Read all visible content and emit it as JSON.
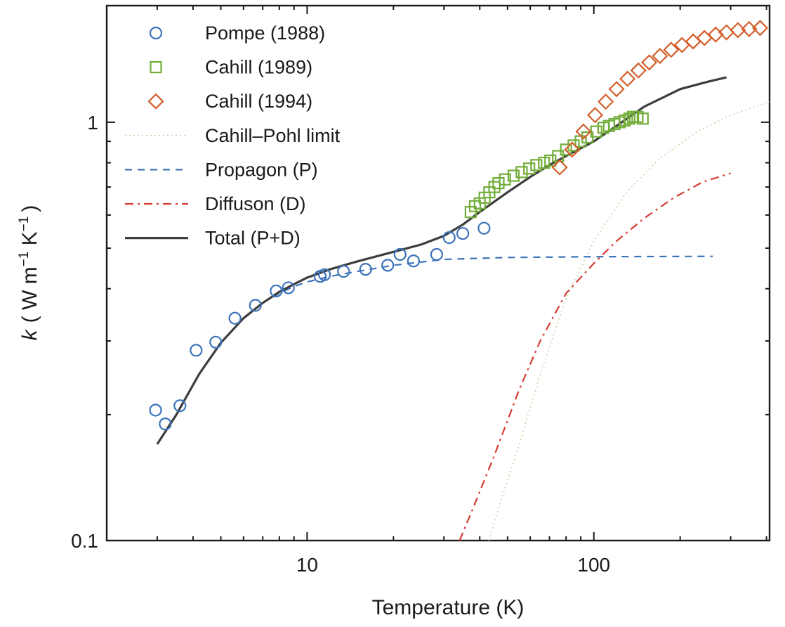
{
  "chart_data": {
    "type": "scatter",
    "xlabel": "Temperature (K)",
    "ylabel": {
      "symbol": "k",
      "units": "( W m",
      "exp1": "−1",
      "mid": " K",
      "exp2": "−1",
      "close": ")"
    },
    "x_scale": "log",
    "y_scale": "log",
    "xlim": [
      2,
      410
    ],
    "ylim": [
      0.1,
      1.9
    ],
    "x_tick_labels": [
      {
        "value": 10,
        "label": "10"
      },
      {
        "value": 100,
        "label": "100"
      }
    ],
    "y_tick_labels": [
      {
        "value": 0.1,
        "label": "0.1"
      },
      {
        "value": 1,
        "label": "1"
      }
    ],
    "grid": false,
    "legend_position": "top-left",
    "series": [
      {
        "name": "Pompe (1988)",
        "kind": "marker",
        "marker": "circle",
        "color": "#3b73b9",
        "points": [
          [
            2.96,
            0.205
          ],
          [
            3.2,
            0.19
          ],
          [
            3.6,
            0.21
          ],
          [
            4.1,
            0.285
          ],
          [
            4.8,
            0.298
          ],
          [
            5.6,
            0.34
          ],
          [
            6.6,
            0.365
          ],
          [
            7.8,
            0.395
          ],
          [
            8.6,
            0.402
          ],
          [
            11.1,
            0.428
          ],
          [
            11.5,
            0.432
          ],
          [
            13.4,
            0.44
          ],
          [
            16.0,
            0.445
          ],
          [
            19.1,
            0.455
          ],
          [
            21.1,
            0.483
          ],
          [
            23.5,
            0.466
          ],
          [
            28.3,
            0.483
          ],
          [
            31.3,
            0.53
          ],
          [
            34.9,
            0.542
          ],
          [
            41.4,
            0.558
          ]
        ]
      },
      {
        "name": "Cahill (1989)",
        "kind": "marker",
        "marker": "square",
        "color": "#73ad3a",
        "points": [
          [
            37.2,
            0.61
          ],
          [
            38.5,
            0.63
          ],
          [
            40.0,
            0.64
          ],
          [
            41.6,
            0.66
          ],
          [
            43.2,
            0.68
          ],
          [
            45.0,
            0.7
          ],
          [
            46.5,
            0.715
          ],
          [
            49.0,
            0.73
          ],
          [
            52.5,
            0.745
          ],
          [
            56.0,
            0.76
          ],
          [
            59.5,
            0.775
          ],
          [
            63.0,
            0.79
          ],
          [
            67.0,
            0.8
          ],
          [
            70.5,
            0.81
          ],
          [
            75.0,
            0.83
          ],
          [
            80.0,
            0.86
          ],
          [
            85.0,
            0.88
          ],
          [
            90.0,
            0.9
          ],
          [
            95.0,
            0.92
          ],
          [
            102.0,
            0.95
          ],
          [
            108.0,
            0.97
          ],
          [
            113.0,
            0.98
          ],
          [
            118.0,
            0.99
          ],
          [
            123.0,
            1.0
          ],
          [
            128.0,
            1.01
          ],
          [
            133.0,
            1.02
          ],
          [
            137.0,
            1.03
          ],
          [
            142.0,
            1.03
          ],
          [
            148.0,
            1.02
          ]
        ]
      },
      {
        "name": "Cahill (1994)",
        "kind": "marker",
        "marker": "diamond",
        "color": "#d35e2a",
        "points": [
          [
            76.0,
            0.78
          ],
          [
            84.0,
            0.86
          ],
          [
            92.0,
            0.95
          ],
          [
            101.0,
            1.04
          ],
          [
            110.0,
            1.12
          ],
          [
            120.0,
            1.2
          ],
          [
            131.0,
            1.27
          ],
          [
            143.0,
            1.33
          ],
          [
            156.0,
            1.39
          ],
          [
            170.0,
            1.44
          ],
          [
            186.0,
            1.49
          ],
          [
            203.0,
            1.53
          ],
          [
            222.0,
            1.56
          ],
          [
            243.0,
            1.59
          ],
          [
            266.0,
            1.62
          ],
          [
            290.0,
            1.64
          ],
          [
            318.0,
            1.66
          ],
          [
            348.0,
            1.67
          ],
          [
            380.0,
            1.68
          ]
        ]
      },
      {
        "name": "Cahill–Pohl limit",
        "kind": "line",
        "dash": "dotted",
        "color": "#c7d4a3",
        "points": [
          [
            43.0,
            0.1
          ],
          [
            48.0,
            0.128
          ],
          [
            55.0,
            0.17
          ],
          [
            65.0,
            0.25
          ],
          [
            80.0,
            0.38
          ],
          [
            100.0,
            0.52
          ],
          [
            130.0,
            0.68
          ],
          [
            170.0,
            0.82
          ],
          [
            230.0,
            0.95
          ],
          [
            300.0,
            1.04
          ],
          [
            410.0,
            1.12
          ]
        ]
      },
      {
        "name": "Propagon (P)",
        "kind": "line",
        "dash": "dashed",
        "color": "#3b73b9",
        "points": [
          [
            3.0,
            0.17
          ],
          [
            3.5,
            0.2
          ],
          [
            4.2,
            0.25
          ],
          [
            5.0,
            0.297
          ],
          [
            6.0,
            0.34
          ],
          [
            7.0,
            0.37
          ],
          [
            8.0,
            0.39
          ],
          [
            9.0,
            0.405
          ],
          [
            10.0,
            0.415
          ],
          [
            12.0,
            0.428
          ],
          [
            15.0,
            0.44
          ],
          [
            20.0,
            0.455
          ],
          [
            30.0,
            0.47
          ],
          [
            50.0,
            0.475
          ],
          [
            100.0,
            0.477
          ],
          [
            260.0,
            0.478
          ]
        ]
      },
      {
        "name": "Diffuson (D)",
        "kind": "line",
        "dash": "dashdot",
        "color": "#d63c33",
        "points": [
          [
            34.0,
            0.1
          ],
          [
            38.0,
            0.12
          ],
          [
            45.0,
            0.16
          ],
          [
            55.0,
            0.23
          ],
          [
            65.0,
            0.3
          ],
          [
            80.0,
            0.39
          ],
          [
            100.0,
            0.46
          ],
          [
            120.0,
            0.52
          ],
          [
            150.0,
            0.59
          ],
          [
            190.0,
            0.66
          ],
          [
            240.0,
            0.72
          ],
          [
            300.0,
            0.755
          ]
        ]
      },
      {
        "name": "Total (P+D)",
        "kind": "line",
        "dash": "solid",
        "color": "#3d3d3d",
        "points": [
          [
            3.0,
            0.17
          ],
          [
            3.5,
            0.2
          ],
          [
            4.2,
            0.25
          ],
          [
            5.0,
            0.297
          ],
          [
            6.0,
            0.34
          ],
          [
            7.0,
            0.37
          ],
          [
            8.0,
            0.393
          ],
          [
            9.0,
            0.41
          ],
          [
            10.0,
            0.425
          ],
          [
            12.0,
            0.445
          ],
          [
            15.0,
            0.465
          ],
          [
            20.0,
            0.49
          ],
          [
            25.0,
            0.51
          ],
          [
            30.0,
            0.535
          ],
          [
            35.0,
            0.57
          ],
          [
            40.0,
            0.61
          ],
          [
            50.0,
            0.68
          ],
          [
            60.0,
            0.74
          ],
          [
            70.0,
            0.79
          ],
          [
            80.0,
            0.83
          ],
          [
            100.0,
            0.9
          ],
          [
            120.0,
            0.98
          ],
          [
            150.0,
            1.09
          ],
          [
            200.0,
            1.2
          ],
          [
            250.0,
            1.25
          ],
          [
            290.0,
            1.28
          ]
        ]
      }
    ]
  }
}
